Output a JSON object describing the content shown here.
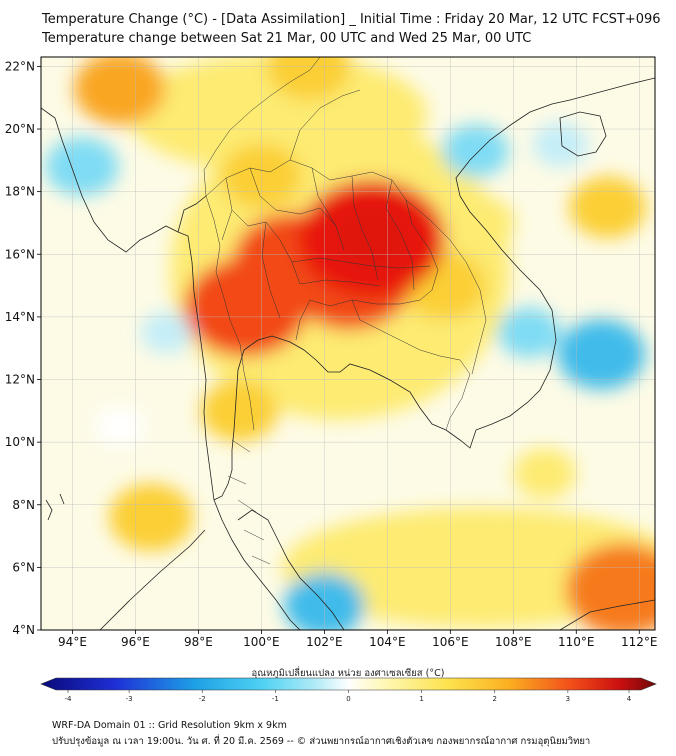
{
  "header": {
    "title": "Temperature Change (°C) - [Data Assimilation] _ Initial Time : Friday 20 Mar, 12 UTC FCST+096",
    "subtitle": "Temperature change between Sat 21 Mar, 00 UTC and Wed 25 Mar, 00 UTC"
  },
  "map": {
    "lon_range": [
      93,
      112.5
    ],
    "lat_range": [
      4,
      22.3
    ],
    "lat_ticks": [
      {
        "value": 4,
        "label": "4°N"
      },
      {
        "value": 6,
        "label": "6°N"
      },
      {
        "value": 8,
        "label": "8°N"
      },
      {
        "value": 10,
        "label": "10°N"
      },
      {
        "value": 12,
        "label": "12°N"
      },
      {
        "value": 14,
        "label": "14°N"
      },
      {
        "value": 16,
        "label": "16°N"
      },
      {
        "value": 18,
        "label": "18°N"
      },
      {
        "value": 20,
        "label": "20°N"
      },
      {
        "value": 22,
        "label": "22°N"
      }
    ],
    "lon_ticks": [
      {
        "value": 94,
        "label": "94°E"
      },
      {
        "value": 96,
        "label": "96°E"
      },
      {
        "value": 98,
        "label": "98°E"
      },
      {
        "value": 100,
        "label": "100°E"
      },
      {
        "value": 102,
        "label": "102°E"
      },
      {
        "value": 104,
        "label": "104°E"
      },
      {
        "value": 106,
        "label": "106°E"
      },
      {
        "value": 108,
        "label": "108°E"
      },
      {
        "value": 110,
        "label": "110°E"
      },
      {
        "value": 112,
        "label": "112°E"
      }
    ],
    "grid": true,
    "field_hotspots": [
      {
        "lon": 103.5,
        "lat": 16.5,
        "value": 3.2
      },
      {
        "lon": 101.0,
        "lat": 15.8,
        "value": 2.4
      },
      {
        "lon": 99.5,
        "lat": 14.3,
        "value": 2.5
      },
      {
        "lon": 102.8,
        "lat": 15.2,
        "value": 2.6
      },
      {
        "lon": 95.5,
        "lat": 21.3,
        "value": 1.6
      },
      {
        "lon": 101.5,
        "lat": 22.0,
        "value": 1.4
      },
      {
        "lon": 111.5,
        "lat": 5.3,
        "value": 2.3
      },
      {
        "lon": 111.0,
        "lat": 17.5,
        "value": 1.2
      },
      {
        "lon": 96.5,
        "lat": 7.6,
        "value": 1.4
      },
      {
        "lon": 99.3,
        "lat": 11.0,
        "value": 1.2
      },
      {
        "lon": 100.0,
        "lat": 18.5,
        "value": 1.3
      },
      {
        "lon": 105.8,
        "lat": 15.0,
        "value": 1.4
      },
      {
        "lon": 109.0,
        "lat": 9.0,
        "value": 0.8
      },
      {
        "lon": 110.8,
        "lat": 12.8,
        "value": -1.5
      },
      {
        "lon": 102.0,
        "lat": 4.8,
        "value": -1.3
      },
      {
        "lon": 94.3,
        "lat": 18.8,
        "value": -1.1
      },
      {
        "lon": 106.8,
        "lat": 19.3,
        "value": -0.9
      },
      {
        "lon": 109.5,
        "lat": 19.5,
        "value": -0.6
      },
      {
        "lon": 97.0,
        "lat": 13.5,
        "value": -0.5
      },
      {
        "lon": 95.5,
        "lat": 10.5,
        "value": -0.4
      },
      {
        "lon": 108.5,
        "lat": 13.5,
        "value": -0.8
      },
      {
        "lon": 107.0,
        "lat": 17.0,
        "value": 0.9
      }
    ]
  },
  "colorbar": {
    "title": "อุณหภูมิเปลี่ยนแปลง หน่วย องศาเซลเซียส (°C)",
    "range": [
      -4,
      4
    ],
    "ticks": [
      "-4",
      "-3",
      "-2",
      "-1",
      "0",
      "1",
      "2",
      "3",
      "4"
    ]
  },
  "footer": {
    "line1": "WRF-DA Domain 01 :: Grid Resolution 9km x 9km",
    "line2": "ปรับปรุงข้อมูล ณ เวลา 19:00น. วัน ศ. ที่ 20 มี.ค. 2569 -- © ส่วนพยากรณ์อากาศเชิงตัวเลข กองพยากรณ์อากาศ กรมอุตุนิยมวิทยา"
  }
}
